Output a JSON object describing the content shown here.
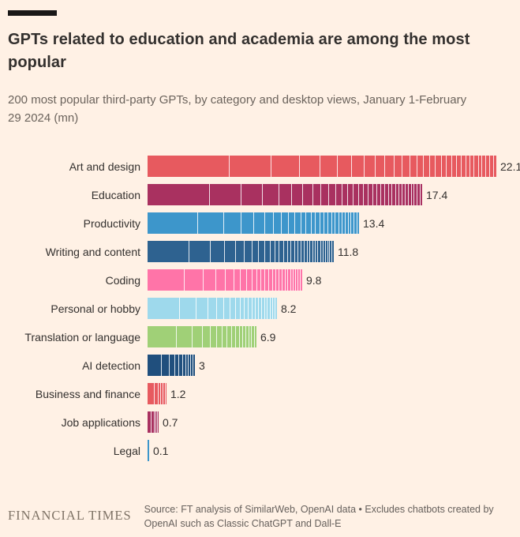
{
  "header": {
    "title": "GPTs related to education and academia are among the most popular",
    "subtitle": "200 most popular third-party GPTs, by category and desktop views, January 1-February 29 2024 (mn)"
  },
  "chart_data": {
    "type": "bar",
    "orientation": "horizontal",
    "title": "GPTs related to education and academia are among the most popular",
    "subtitle": "200 most popular third-party GPTs, by category and desktop views, January 1-February 29 2024 (mn)",
    "categories": [
      "Art and design",
      "Education",
      "Productivity",
      "Writing and content",
      "Coding",
      "Personal or hobby",
      "Translation or language",
      "AI detection",
      "Business and finance",
      "Job applications",
      "Legal"
    ],
    "values": [
      22.1,
      17.4,
      13.4,
      11.8,
      9.8,
      8.2,
      6.9,
      3,
      1.2,
      0.7,
      0.1
    ],
    "value_labels": [
      "22.1",
      "17.4",
      "13.4",
      "11.8",
      "9.8",
      "8.2",
      "6.9",
      "3",
      "1.2",
      "0.7",
      "0.1"
    ],
    "colors": [
      "#E75A5F",
      "#A93160",
      "#3D96CB",
      "#2E6290",
      "#FF74A8",
      "#9ED9EC",
      "#A0D077",
      "#204F7D",
      "#E75A5F",
      "#A93160",
      "#3D96CB"
    ],
    "segments": [
      30,
      32,
      26,
      30,
      24,
      20,
      16,
      10,
      6,
      5,
      1
    ],
    "xlim": [
      0,
      22.1
    ],
    "unit": "mn",
    "grid": false,
    "legend": "none",
    "segment_note": "bars subdivided into individual GPTs, widest first"
  },
  "footer": {
    "brand": "FINANCIAL TIMES",
    "source": "Source: FT analysis of SimilarWeb, OpenAI data • Excludes chatbots created by OpenAI such as Classic ChatGPT and Dall-E"
  },
  "theme": {
    "background": "#FFF1E5",
    "accent_bar": "#1A1817",
    "text": "#33302E",
    "muted": "#66605C",
    "brand_text": "#7E7265",
    "segment_line": "#FFFFFF"
  }
}
